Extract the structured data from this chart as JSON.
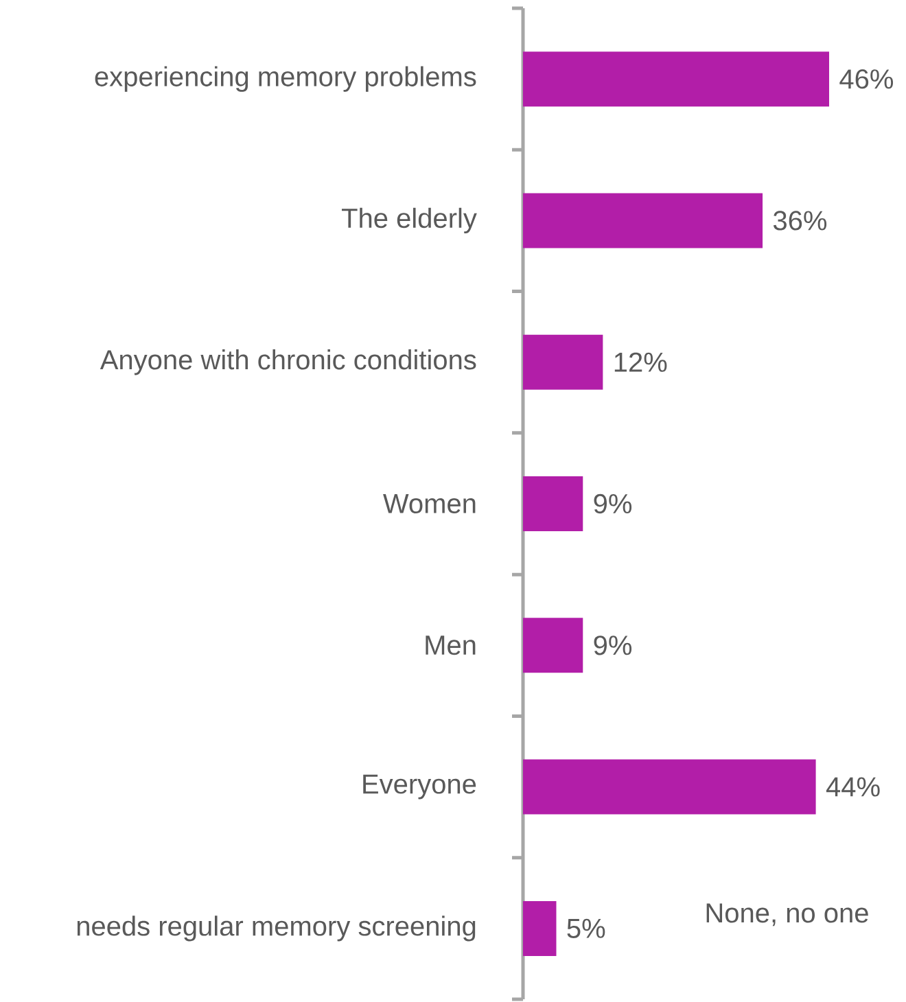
{
  "chart_data": {
    "type": "bar",
    "orientation": "horizontal",
    "categories": [
      "experiencing memory problems",
      "The elderly",
      "Anyone with chronic conditions",
      "Women",
      "Men",
      "Everyone",
      "needs regular memory screening"
    ],
    "values": [
      46,
      36,
      12,
      9,
      9,
      44,
      5
    ],
    "value_labels": [
      "46%",
      "36%",
      "12%",
      "9%",
      "9%",
      "44%",
      "5%"
    ],
    "color": "#b21ea8",
    "tick_labels": "y",
    "annotations": [
      "None, no one"
    ]
  }
}
